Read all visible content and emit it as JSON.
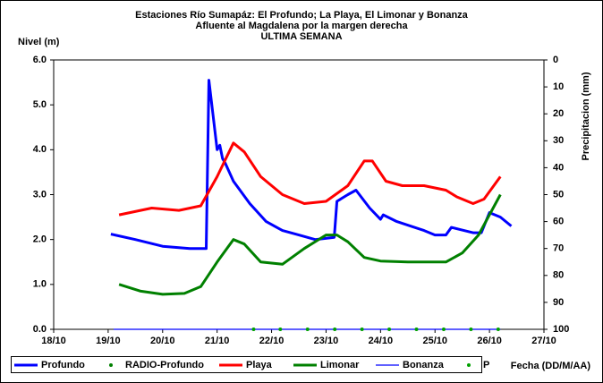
{
  "chart_data": {
    "type": "line",
    "title": [
      "Estaciones Río Sumapáz: El Profundo; La Playa, El Limonar y Bonanza",
      "Afluente al Magdalena por la margen derecha",
      "ULTIMA SEMANA"
    ],
    "ylabel": "Nivel (m)",
    "y2label": "Precipitacion (mm)",
    "xlabel": "Fecha (DD/M/AA)",
    "xlim": [
      18,
      27
    ],
    "xticks": [
      {
        "value": 18,
        "label": "18/10"
      },
      {
        "value": 19,
        "label": "19/10"
      },
      {
        "value": 20,
        "label": "20/10"
      },
      {
        "value": 21,
        "label": "21/10"
      },
      {
        "value": 22,
        "label": "22/10"
      },
      {
        "value": 23,
        "label": "23/10"
      },
      {
        "value": 24,
        "label": "24/10"
      },
      {
        "value": 25,
        "label": "25/10"
      },
      {
        "value": 26,
        "label": "26/10"
      },
      {
        "value": 27,
        "label": "27/10"
      }
    ],
    "ylim": [
      0,
      6
    ],
    "yticks": [
      {
        "value": 0,
        "label": "0.0"
      },
      {
        "value": 1,
        "label": "1.0"
      },
      {
        "value": 2,
        "label": "2.0"
      },
      {
        "value": 3,
        "label": "3.0"
      },
      {
        "value": 4,
        "label": "4.0"
      },
      {
        "value": 5,
        "label": "5.0"
      },
      {
        "value": 6,
        "label": "6.0"
      }
    ],
    "y2lim": [
      0,
      100
    ],
    "y2_reversed": true,
    "y2ticks": [
      0,
      10,
      20,
      30,
      40,
      50,
      60,
      70,
      80,
      90,
      100
    ],
    "legend": "bottom",
    "series": [
      {
        "name": "Profundo",
        "color": "#0000ff",
        "mode": "lines",
        "width": 3,
        "x": [
          19.05,
          19.5,
          20.0,
          20.5,
          20.8,
          20.85,
          21.0,
          21.05,
          21.1,
          21.15,
          21.3,
          21.6,
          21.9,
          22.2,
          22.5,
          22.8,
          23.15,
          23.2,
          23.4,
          23.55,
          23.8,
          24.0,
          24.05,
          24.3,
          24.8,
          25.0,
          25.2,
          25.3,
          25.7,
          25.85,
          26.0,
          26.2,
          26.4
        ],
        "values": [
          2.12,
          2.0,
          1.85,
          1.8,
          1.8,
          5.55,
          4.0,
          4.1,
          3.8,
          3.7,
          3.3,
          2.8,
          2.4,
          2.2,
          2.1,
          2.0,
          2.05,
          2.85,
          3.0,
          3.1,
          2.7,
          2.45,
          2.55,
          2.4,
          2.2,
          2.1,
          2.1,
          2.27,
          2.15,
          2.15,
          2.6,
          2.5,
          2.3
        ]
      },
      {
        "name": "RADIO-Profundo",
        "color": "#008000",
        "mode": "markers",
        "x": [],
        "values": []
      },
      {
        "name": "Playa",
        "color": "#ff0000",
        "mode": "lines",
        "width": 3,
        "x": [
          19.2,
          19.8,
          20.3,
          20.7,
          21.0,
          21.3,
          21.5,
          21.8,
          22.2,
          22.6,
          23.0,
          23.4,
          23.7,
          23.85,
          24.1,
          24.4,
          24.8,
          25.2,
          25.4,
          25.7,
          25.9,
          26.2
        ],
        "values": [
          2.55,
          2.7,
          2.65,
          2.75,
          3.4,
          4.15,
          3.95,
          3.4,
          3.0,
          2.8,
          2.85,
          3.2,
          3.75,
          3.75,
          3.3,
          3.2,
          3.2,
          3.1,
          2.95,
          2.8,
          2.9,
          3.4
        ]
      },
      {
        "name": "Limonar",
        "color": "#008000",
        "mode": "lines",
        "width": 3,
        "x": [
          19.2,
          19.6,
          20.0,
          20.4,
          20.7,
          21.0,
          21.3,
          21.5,
          21.8,
          22.2,
          22.6,
          23.0,
          23.2,
          23.4,
          23.7,
          24.0,
          24.5,
          24.9,
          25.2,
          25.5,
          25.8,
          26.2
        ],
        "values": [
          1.0,
          0.85,
          0.78,
          0.8,
          0.95,
          1.5,
          2.0,
          1.9,
          1.5,
          1.45,
          1.8,
          2.1,
          2.1,
          1.95,
          1.6,
          1.52,
          1.5,
          1.5,
          1.5,
          1.7,
          2.1,
          3.0
        ]
      },
      {
        "name": "Bonanza",
        "color": "#0000ff",
        "mode": "lines",
        "width": 1.2,
        "x": [
          19.1,
          26.2
        ],
        "values": [
          0,
          0
        ]
      },
      {
        "name": "P",
        "color": "#00a000",
        "mode": "markers",
        "x": [
          21.67,
          22.16,
          22.66,
          23.16,
          23.66,
          24.16,
          24.66,
          25.16,
          25.66,
          26.16
        ],
        "values": [
          0,
          0,
          0,
          0,
          0,
          0,
          0,
          0,
          0,
          0
        ]
      }
    ]
  }
}
